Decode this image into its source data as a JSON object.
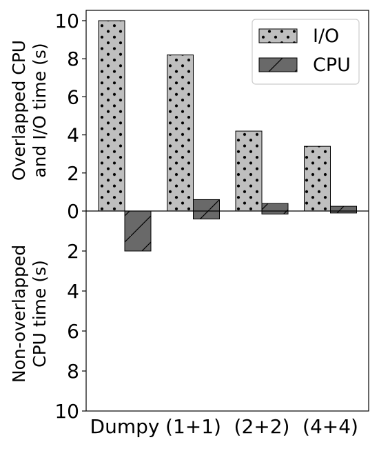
{
  "chart_data": {
    "type": "bar",
    "categories": [
      "Dumpy",
      "(1+1)",
      "(2+2)",
      "(4+4)"
    ],
    "series": [
      {
        "name": "I/O",
        "values": [
          10.0,
          8.2,
          4.2,
          3.4
        ],
        "color": "#bfbfbf",
        "hatch": "dots"
      },
      {
        "name": "CPU",
        "values": [
          0.0,
          0.6,
          0.4,
          0.25
        ],
        "color": "#696969",
        "hatch": "slash"
      }
    ],
    "non_overlapped_cpu": {
      "name": "CPU",
      "values": [
        2.0,
        0.4,
        0.15,
        0.1
      ]
    },
    "upper_ylabel_lines": [
      "Overlapped CPU",
      "and I/O time (s)"
    ],
    "lower_ylabel_lines": [
      "Non-overlapped",
      "CPU time (s)"
    ],
    "upper_ylim": [
      0,
      10.4
    ],
    "lower_ylim": [
      0,
      10
    ],
    "upper_ticks": [
      "0",
      "2",
      "4",
      "6",
      "8",
      "10"
    ],
    "lower_ticks": [
      "2",
      "4",
      "6",
      "8",
      "10"
    ],
    "legend_position": "top-right",
    "grid": false
  }
}
